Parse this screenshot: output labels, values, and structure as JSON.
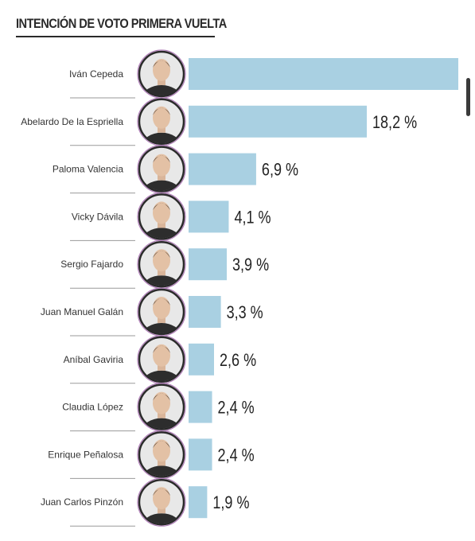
{
  "title": "INTENCIÓN DE VOTO PRIMERA VUELTA",
  "chart_data": {
    "type": "bar",
    "orientation": "horizontal",
    "title": "INTENCIÓN DE VOTO PRIMERA VUELTA",
    "categories": [
      "Iván Cepeda",
      "Abelardo De la Espriella",
      "Paloma Valencia",
      "Vicky Dávila",
      "Sergio Fajardo",
      "Juan Manuel Galán",
      "Aníbal Gaviria",
      "Claudia López",
      "Enrique Peñalosa",
      "Juan Carlos Pinzón"
    ],
    "values": [
      null,
      18.2,
      6.9,
      4.1,
      3.9,
      3.3,
      2.6,
      2.4,
      2.4,
      1.9
    ],
    "value_labels": [
      "",
      "18,2 %",
      "6,9 %",
      "4,1 %",
      "3,9 %",
      "3,3 %",
      "2,6 %",
      "2,4 %",
      "2,4 %",
      "1,9 %"
    ],
    "bar_color": "#a9d0e2",
    "avatar_ring_color": "#b07fb8"
  }
}
